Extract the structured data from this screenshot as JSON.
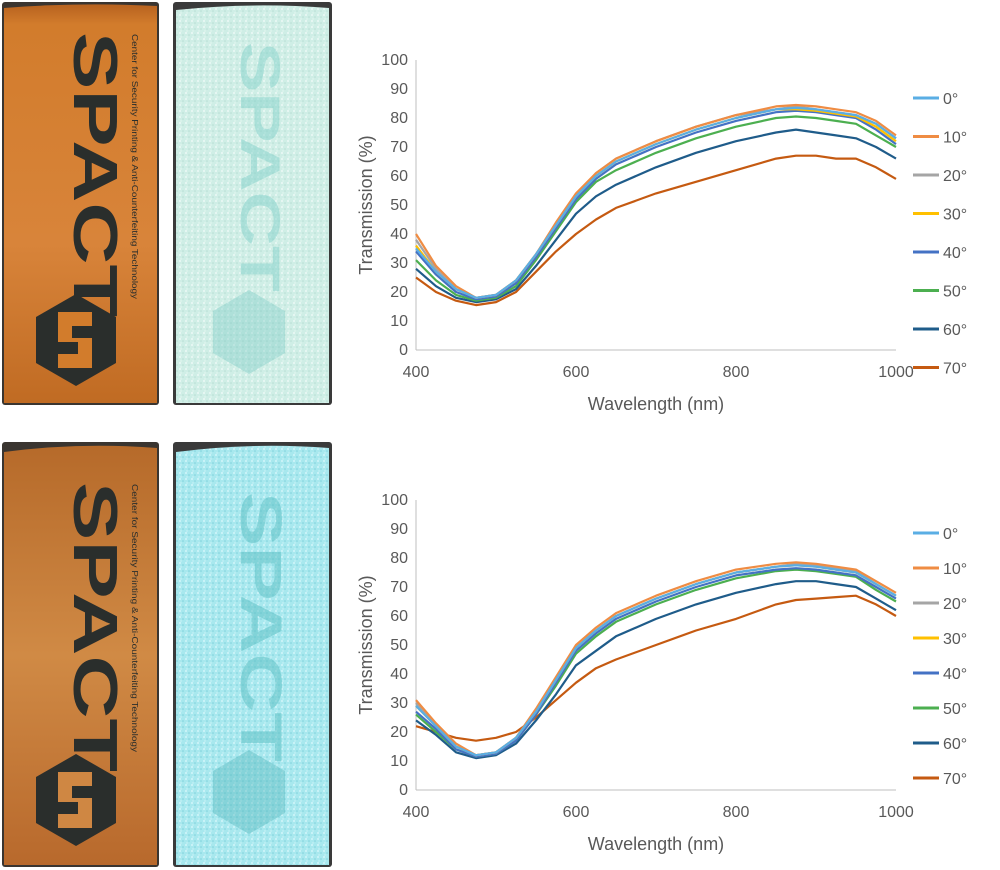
{
  "photos": {
    "logo_text": "SPACT",
    "subtitle": "Center for Security Printing & Anti-Counterfeiting Technology",
    "colors": {
      "orange_bg": "#d07a2a",
      "orange_dark": "#a9561a",
      "ink": "#2a2e2c",
      "cyan_bg": "#cfeee6",
      "cyan_text": "#7dcfc8",
      "cyan_bright": "#a8e8ee"
    }
  },
  "chart_data": [
    {
      "type": "line",
      "title": "",
      "xlabel": "Wavelength (nm)",
      "ylabel": "Transmission (%)",
      "xlim": [
        400,
        1000
      ],
      "ylim": [
        0,
        100
      ],
      "xticks": [
        "400",
        "600",
        "800",
        "1000"
      ],
      "yticks": [
        "0",
        "10",
        "20",
        "30",
        "40",
        "50",
        "60",
        "70",
        "80",
        "90",
        "100"
      ],
      "grid": false,
      "legend": "right",
      "x": [
        400,
        425,
        450,
        475,
        500,
        525,
        550,
        575,
        600,
        625,
        650,
        700,
        750,
        800,
        850,
        875,
        900,
        925,
        950,
        975,
        1000
      ],
      "series": [
        {
          "name": "0°",
          "color": "#5aaee4",
          "values": [
            35,
            27,
            21,
            18,
            19,
            24,
            33,
            43,
            53,
            60,
            65,
            71,
            76,
            80,
            83,
            83.5,
            83,
            82,
            81,
            78,
            73
          ]
        },
        {
          "name": "10°",
          "color": "#ef8c43",
          "values": [
            40,
            29,
            22,
            18,
            19,
            24,
            33,
            44,
            54,
            61,
            66,
            72,
            77,
            81,
            84,
            84.5,
            84,
            83,
            82,
            79,
            74
          ]
        },
        {
          "name": "20°",
          "color": "#a5a5a5",
          "values": [
            38,
            28,
            21,
            18,
            19,
            24,
            33,
            43,
            53,
            61,
            66,
            72,
            77,
            81,
            83,
            84,
            83,
            82,
            81,
            78,
            73
          ]
        },
        {
          "name": "30°",
          "color": "#ffc000",
          "values": [
            36,
            27,
            21,
            18,
            19,
            24,
            33,
            43,
            53,
            60,
            65,
            71,
            76,
            80,
            83,
            83,
            82.5,
            81.5,
            80.5,
            77,
            72
          ]
        },
        {
          "name": "40°",
          "color": "#4472c4",
          "values": [
            34,
            26,
            20,
            17.5,
            18.5,
            23,
            32,
            42,
            52,
            59,
            64,
            70,
            75,
            79,
            82,
            82.5,
            82,
            81,
            80,
            76,
            71
          ]
        },
        {
          "name": "50°",
          "color": "#4caf50",
          "values": [
            31,
            24,
            19,
            17,
            18,
            22,
            31,
            41,
            51,
            58,
            62,
            68,
            73,
            77,
            80,
            80.5,
            80,
            79,
            78,
            74,
            70
          ]
        },
        {
          "name": "60°",
          "color": "#1f5c8a",
          "values": [
            28,
            22,
            18,
            16.5,
            17.5,
            21,
            29,
            38,
            47,
            53,
            57,
            63,
            68,
            72,
            75,
            76,
            75,
            74,
            73,
            70,
            66
          ]
        },
        {
          "name": "70°",
          "color": "#c55a11",
          "values": [
            25,
            20,
            17,
            15.5,
            16.5,
            20,
            27,
            34,
            40,
            45,
            49,
            54,
            58,
            62,
            66,
            67,
            67,
            66,
            66,
            63,
            59
          ]
        }
      ]
    },
    {
      "type": "line",
      "title": "",
      "xlabel": "Wavelength (nm)",
      "ylabel": "Transmission (%)",
      "xlim": [
        400,
        1000
      ],
      "ylim": [
        0,
        100
      ],
      "xticks": [
        "400",
        "600",
        "800",
        "1000"
      ],
      "yticks": [
        "0",
        "10",
        "20",
        "30",
        "40",
        "50",
        "60",
        "70",
        "80",
        "90",
        "100"
      ],
      "grid": false,
      "legend": "right",
      "x": [
        400,
        425,
        450,
        475,
        500,
        525,
        550,
        575,
        600,
        625,
        650,
        700,
        750,
        800,
        850,
        875,
        900,
        925,
        950,
        975,
        1000
      ],
      "series": [
        {
          "name": "0°",
          "color": "#5aaee4",
          "values": [
            29,
            22,
            15,
            12,
            13,
            18,
            27,
            38,
            49,
            55,
            60,
            66,
            71,
            75,
            77,
            77.5,
            77,
            76,
            75,
            71,
            67
          ]
        },
        {
          "name": "10°",
          "color": "#ef8c43",
          "values": [
            31,
            23,
            16,
            12,
            13,
            18,
            28,
            39,
            50,
            56,
            61,
            67,
            72,
            76,
            78,
            78.5,
            78,
            77,
            76,
            72,
            68
          ]
        },
        {
          "name": "20°",
          "color": "#a5a5a5",
          "values": [
            30,
            22,
            15,
            12,
            13,
            18,
            27,
            38,
            49,
            55,
            60,
            66,
            71,
            75,
            77,
            78,
            77.5,
            76.5,
            75.5,
            71,
            67
          ]
        },
        {
          "name": "30°",
          "color": "#ffc000",
          "values": [
            29,
            22,
            15,
            12,
            13,
            18,
            27,
            38,
            49,
            55,
            60,
            66,
            71,
            75,
            77,
            77.5,
            77,
            76,
            75,
            71,
            67
          ]
        },
        {
          "name": "40°",
          "color": "#4472c4",
          "values": [
            27,
            21,
            14,
            11.5,
            12.5,
            17,
            26,
            37,
            48,
            54,
            59,
            65,
            70,
            74,
            76,
            76.5,
            76,
            75,
            74,
            70,
            66
          ]
        },
        {
          "name": "50°",
          "color": "#4caf50",
          "values": [
            26,
            20,
            14,
            11.5,
            12.5,
            17,
            26,
            36,
            47,
            53,
            58,
            64,
            69,
            73,
            75.5,
            76,
            75.5,
            74.5,
            73.5,
            69,
            65
          ]
        },
        {
          "name": "60°",
          "color": "#1f5c8a",
          "values": [
            24,
            19,
            13,
            11,
            12,
            16,
            24,
            33,
            43,
            48,
            53,
            59,
            64,
            68,
            71,
            72,
            72,
            71,
            70,
            66,
            62
          ]
        },
        {
          "name": "70°",
          "color": "#c55a11",
          "values": [
            22,
            20,
            18,
            17,
            18,
            20,
            25,
            31,
            37,
            42,
            45,
            50,
            55,
            59,
            64,
            65.5,
            66,
            66.5,
            67,
            64,
            60
          ]
        }
      ]
    }
  ]
}
